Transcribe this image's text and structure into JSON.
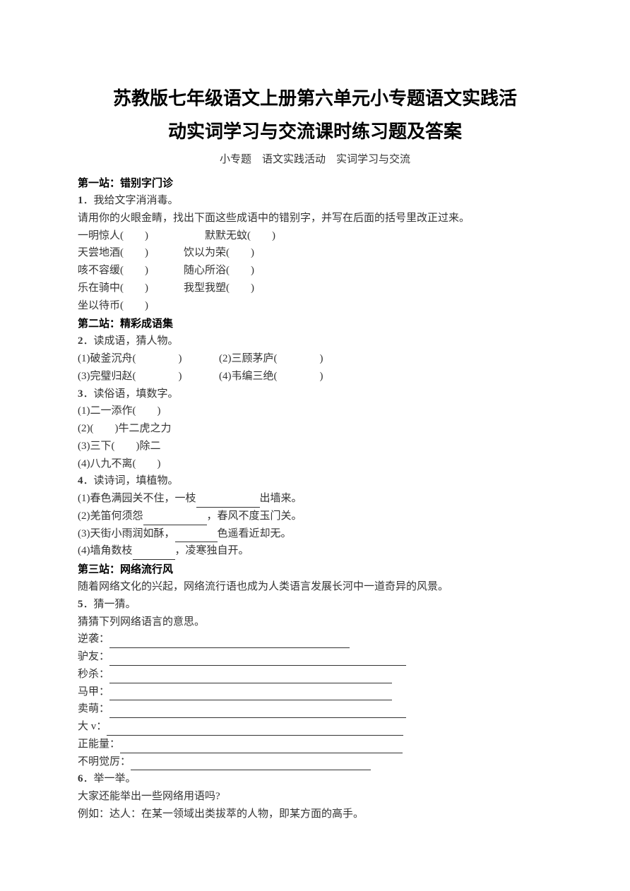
{
  "title_line1": "苏教版七年级语文上册第六单元小专题语文实践活",
  "title_line2": "动实词学习与交流课时练习题及答案",
  "subtitle": "小专题　语文实践活动　实词学习与交流",
  "station1": {
    "header": "第一站：错别字门诊",
    "q1": {
      "num": "1",
      "text": "．我给文字消消毒。"
    },
    "instruction": "请用你的火眼金睛，找出下面这些成语中的错别字，并写在后面的括号里改正过来。",
    "items": [
      {
        "a": "一明惊人(　　)",
        "b": "默默无蚊(　　)"
      },
      {
        "a": "天尝地酒(　　)",
        "b": "饮以为荣(　　)"
      },
      {
        "a": "咳不容缓(　　)",
        "b": "随心所浴(　　)"
      },
      {
        "a": "乐在骑中(　　)",
        "b": "我型我塑(　　)"
      },
      {
        "a": "坐以待币(　　)",
        "b": ""
      }
    ]
  },
  "station2": {
    "header": "第二站：精彩成语集",
    "q2": {
      "num": "2",
      "text": "．读成语，猜人物。"
    },
    "q2items": [
      {
        "a": "(1)破釜沉舟(　　　　)",
        "b": "(2)三顾茅庐(　　　　)"
      },
      {
        "a": "(3)完璧归赵(　　　　)",
        "b": "(4)韦编三绝(　　　　)"
      }
    ],
    "q3": {
      "num": "3",
      "text": "．读俗语，填数字。"
    },
    "q3items": [
      "(1)二一添作(　　)",
      "(2)(　　)牛二虎之力",
      "(3)三下(　　)除二",
      "(4)八九不离(　　)"
    ],
    "q4": {
      "num": "4",
      "text": "．读诗词，填植物。"
    },
    "q4items": [
      {
        "pre": "(1)春色满园关不住，一枝",
        "post": "出墙来。",
        "w": "w90"
      },
      {
        "pre": "(2)羌笛何须怨",
        "post": "，春风不度玉门关。",
        "w": "w90"
      },
      {
        "pre": "(3)天街小雨润如酥，",
        "post": "色遥看近却无。",
        "w": "w60"
      },
      {
        "pre": "(4)墙角数枝",
        "post": "，凌寒独自开。",
        "w": "w60"
      }
    ]
  },
  "station3": {
    "header": "第三站：网络流行风",
    "intro": "随着网络文化的兴起，网络流行语也成为人类语言发展长河中一道奇异的风景。",
    "q5": {
      "num": "5",
      "text": "．猜一猜。"
    },
    "q5instruction": "猜猜下列网络语言的意思。",
    "q5items": [
      {
        "label": "逆袭：",
        "w": "w340"
      },
      {
        "label": "驴友：",
        "w": "w420"
      },
      {
        "label": "秒杀：",
        "w": "w400"
      },
      {
        "label": "马甲：",
        "w": "w400"
      },
      {
        "label": "卖萌：",
        "w": "w420"
      },
      {
        "label": "大 v：",
        "w": "w420"
      },
      {
        "label": "正能量：",
        "w": "w400"
      },
      {
        "label": "不明觉厉：",
        "w": "w340"
      }
    ],
    "q6": {
      "num": "6",
      "text": "．举一举。"
    },
    "q6line1": "大家还能举出一些网络用语吗?",
    "q6line2": "例如：达人：在某一领域出类拔萃的人物，即某方面的高手。"
  }
}
